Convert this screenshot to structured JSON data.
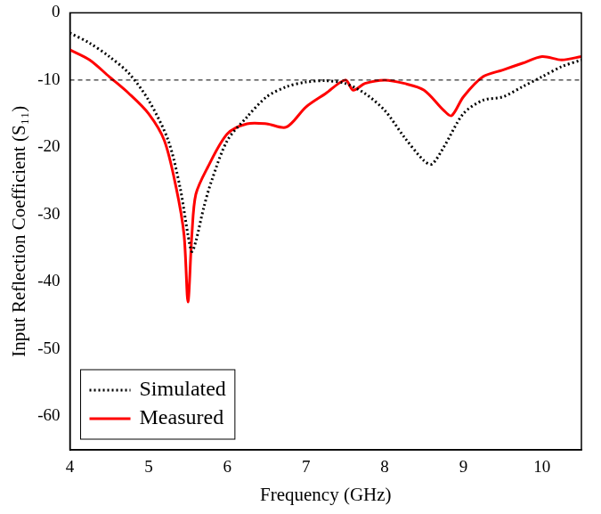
{
  "chart_data": {
    "type": "line",
    "x_label": "Frequency (GHz)",
    "y_label": "Input Reflection Coefficient (S₁₁)",
    "xlim": [
      4,
      10.5
    ],
    "xticks": [
      4,
      5,
      6,
      7,
      8,
      9,
      10
    ],
    "ylim": [
      -65,
      0
    ],
    "yticks": [
      -60,
      -50,
      -40,
      -30,
      -20,
      -10,
      0
    ],
    "grid": false,
    "legend": "lower left",
    "threshold": -10,
    "series": [
      {
        "name": "Simulated",
        "color": "#000000",
        "line_style": "dotted",
        "marker": "none",
        "x": [
          4.0,
          4.25,
          4.5,
          4.75,
          5.0,
          5.25,
          5.4,
          5.5,
          5.55,
          5.6,
          5.7,
          5.8,
          6.0,
          6.25,
          6.5,
          6.75,
          7.0,
          7.25,
          7.5,
          7.75,
          8.0,
          8.25,
          8.5,
          8.6,
          8.75,
          9.0,
          9.25,
          9.5,
          9.75,
          10.0,
          10.25,
          10.5
        ],
        "values": [
          -3,
          -4.5,
          -6.5,
          -9,
          -13,
          -19,
          -26,
          -33,
          -35.5,
          -34,
          -29,
          -25,
          -19,
          -15.5,
          -12.5,
          -11,
          -10.3,
          -10.1,
          -10.5,
          -12,
          -14.5,
          -18.5,
          -22,
          -22.5,
          -20,
          -15,
          -13,
          -12.5,
          -11,
          -9.5,
          -8,
          -7
        ]
      },
      {
        "name": "Measured",
        "color": "#ff0000",
        "line_style": "solid",
        "marker": "none",
        "x": [
          4.0,
          4.25,
          4.5,
          4.75,
          5.0,
          5.2,
          5.35,
          5.45,
          5.5,
          5.55,
          5.6,
          5.75,
          6.0,
          6.25,
          6.5,
          6.75,
          7.0,
          7.25,
          7.5,
          7.6,
          7.75,
          8.0,
          8.25,
          8.5,
          8.75,
          8.85,
          9.0,
          9.25,
          9.5,
          9.75,
          10.0,
          10.25,
          10.5
        ],
        "values": [
          -5.5,
          -7,
          -9.5,
          -12,
          -15,
          -19,
          -26,
          -33,
          -43,
          -33,
          -27,
          -23,
          -18,
          -16.5,
          -16.5,
          -17,
          -14,
          -12,
          -10,
          -11.5,
          -10.5,
          -10,
          -10.5,
          -11.5,
          -14.5,
          -15.3,
          -12.5,
          -9.5,
          -8.5,
          -7.5,
          -6.5,
          -7,
          -6.5
        ]
      }
    ]
  }
}
